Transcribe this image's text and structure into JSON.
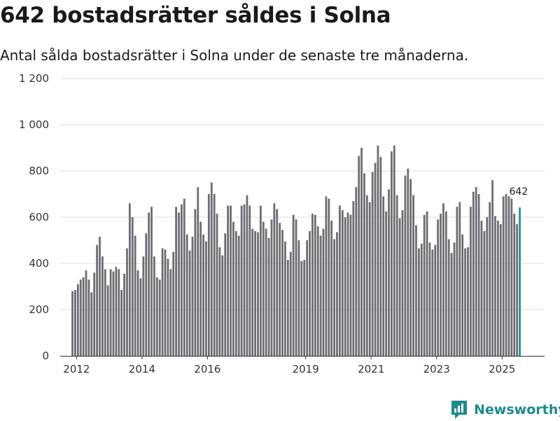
{
  "title": "642 bostadsrätter såldes i Solna",
  "subtitle": "Antal sålda bostadsrätter i Solna under de senaste tre månaderna.",
  "brand": "Newsworthy",
  "colors": {
    "bar": "#6e6d73",
    "highlight": "#1a9a96",
    "grid": "#dcdcdc",
    "brand": "#1d8b8a"
  },
  "chart_data": {
    "type": "bar",
    "title": "642 bostadsrätter såldes i Solna",
    "xlabel": "",
    "ylabel": "",
    "ylim": [
      0,
      1200
    ],
    "yticks": [
      0,
      200,
      400,
      600,
      800,
      1000,
      1200
    ],
    "ytick_labels": [
      "0",
      "200",
      "400",
      "600",
      "800",
      "1 000",
      "1 200"
    ],
    "x_start": 2011.875,
    "x_step": 0.08333,
    "xlim": [
      2011.5,
      2026.3
    ],
    "xticks": [
      2012,
      2014,
      2016,
      2019,
      2021,
      2023,
      2025
    ],
    "xtick_labels": [
      "2012",
      "2014",
      "2016",
      "2019",
      "2021",
      "2023",
      "2025"
    ],
    "values": [
      280,
      285,
      310,
      330,
      340,
      370,
      330,
      275,
      360,
      480,
      515,
      430,
      375,
      305,
      375,
      365,
      385,
      375,
      285,
      355,
      465,
      660,
      600,
      520,
      370,
      335,
      430,
      530,
      620,
      645,
      430,
      340,
      330,
      465,
      460,
      420,
      375,
      450,
      645,
      620,
      655,
      680,
      525,
      455,
      515,
      635,
      730,
      580,
      525,
      495,
      700,
      750,
      700,
      615,
      470,
      435,
      530,
      650,
      650,
      580,
      540,
      520,
      650,
      655,
      695,
      650,
      550,
      540,
      535,
      650,
      580,
      550,
      510,
      590,
      660,
      635,
      575,
      545,
      495,
      415,
      450,
      610,
      590,
      500,
      410,
      415,
      500,
      540,
      615,
      610,
      560,
      520,
      550,
      690,
      680,
      585,
      505,
      535,
      650,
      630,
      600,
      620,
      610,
      670,
      730,
      865,
      900,
      790,
      695,
      665,
      795,
      835,
      910,
      860,
      690,
      625,
      720,
      885,
      910,
      695,
      595,
      630,
      780,
      810,
      765,
      695,
      565,
      465,
      485,
      610,
      625,
      490,
      460,
      480,
      590,
      615,
      660,
      625,
      505,
      445,
      490,
      645,
      665,
      525,
      465,
      470,
      645,
      710,
      730,
      700,
      585,
      540,
      600,
      665,
      760,
      605,
      585,
      570,
      690,
      700,
      690,
      680,
      615,
      570,
      642
    ],
    "highlight_last": true,
    "last_value_label": "642"
  }
}
